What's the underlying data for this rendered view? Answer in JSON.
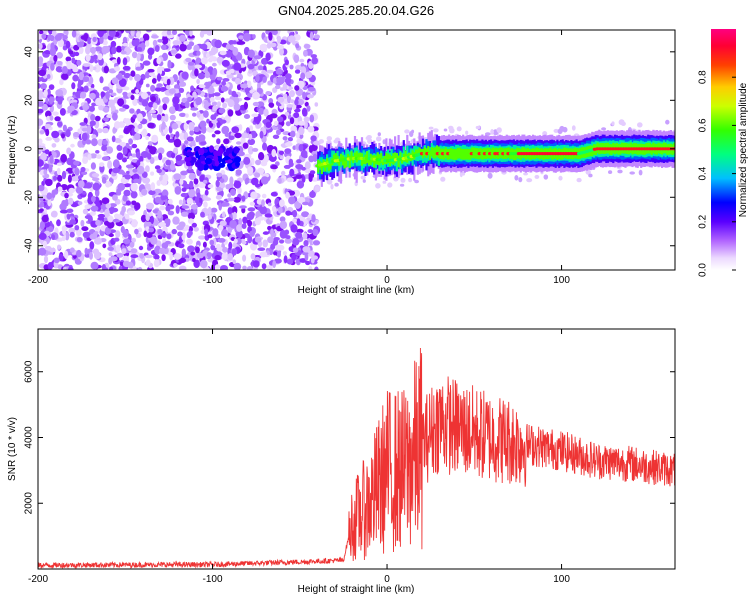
{
  "title": "GN04.2025.285.20.04.G26",
  "chart_data": [
    {
      "type": "heatmap",
      "xlabel": "Height of straight line (km)",
      "ylabel": "Frequency (Hz)",
      "xlim": [
        -200,
        165
      ],
      "ylim": [
        -50,
        49
      ],
      "xticks": [
        -200,
        -100,
        0,
        100
      ],
      "yticks": [
        -40,
        -20,
        0,
        20,
        40
      ],
      "noise_region_x": [
        -200,
        -40
      ],
      "ridge": [
        {
          "x": -40,
          "y": -7
        },
        {
          "x": -30,
          "y": -5
        },
        {
          "x": -20,
          "y": -4
        },
        {
          "x": -10,
          "y": -4
        },
        {
          "x": 0,
          "y": -5
        },
        {
          "x": 10,
          "y": -4
        },
        {
          "x": 20,
          "y": -2
        },
        {
          "x": 40,
          "y": -2
        },
        {
          "x": 70,
          "y": -2
        },
        {
          "x": 90,
          "y": -2
        },
        {
          "x": 110,
          "y": -2
        },
        {
          "x": 120,
          "y": 0
        },
        {
          "x": 165,
          "y": 0
        }
      ],
      "colorbar": {
        "label": "Normalized spectral amplitude",
        "range": [
          0,
          1
        ],
        "ticks": [
          0.0,
          0.2,
          0.4,
          0.6,
          0.8
        ],
        "tick_labels": [
          "0.0",
          "0.2",
          "0.4",
          "0.6",
          "0.8"
        ],
        "colors": [
          "#ffffff",
          "#d9b3ff",
          "#7f00ff",
          "#0000ff",
          "#00e5ff",
          "#00ff00",
          "#ffff00",
          "#ff8000",
          "#ff0000",
          "#ff0080"
        ]
      }
    },
    {
      "type": "line",
      "xlabel": "Height of straight line (km)",
      "ylabel": "SNR (10 * v/v)",
      "xlim": [
        -200,
        165
      ],
      "ylim": [
        0,
        7300
      ],
      "xticks": [
        -200,
        -100,
        0,
        100
      ],
      "yticks": [
        2000,
        4000,
        6000
      ],
      "color": "#ee3333",
      "envelope": [
        {
          "x": -200,
          "y": 100
        },
        {
          "x": -100,
          "y": 120
        },
        {
          "x": -50,
          "y": 200
        },
        {
          "x": -25,
          "y": 250
        },
        {
          "x": -20,
          "y": 1400
        },
        {
          "x": -10,
          "y": 2000
        },
        {
          "x": 0,
          "y": 3000
        },
        {
          "x": 10,
          "y": 3000
        },
        {
          "x": 20,
          "y": 3800
        },
        {
          "x": 30,
          "y": 4500
        },
        {
          "x": 40,
          "y": 4300
        },
        {
          "x": 60,
          "y": 4000
        },
        {
          "x": 80,
          "y": 3800
        },
        {
          "x": 100,
          "y": 3600
        },
        {
          "x": 120,
          "y": 3300
        },
        {
          "x": 140,
          "y": 3200
        },
        {
          "x": 165,
          "y": 3000
        }
      ]
    }
  ]
}
